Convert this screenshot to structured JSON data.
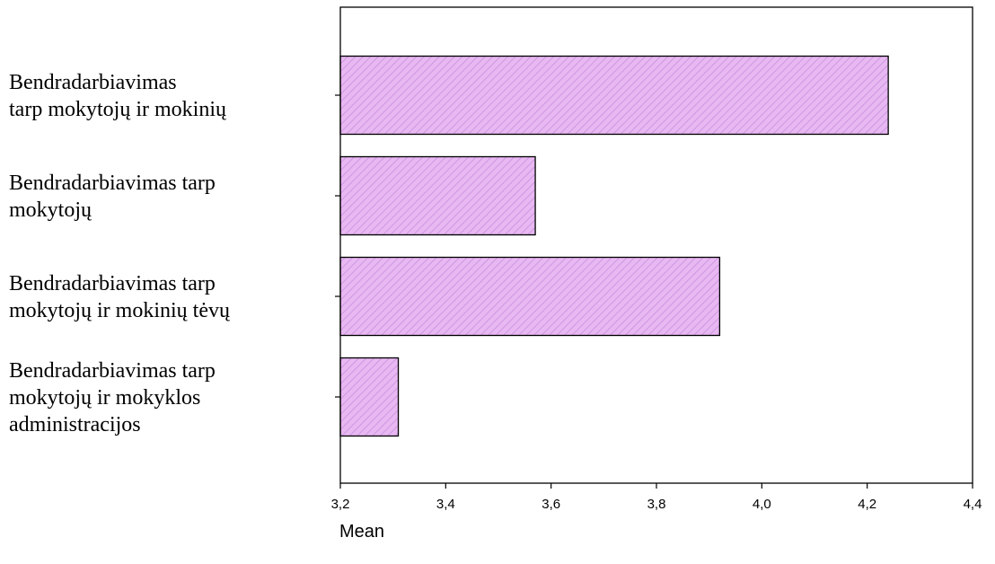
{
  "chart_data": {
    "type": "bar",
    "orientation": "horizontal",
    "categories": [
      [
        "Bendradarbiavimas",
        "tarp mokytojų ir mokinių"
      ],
      [
        "Bendradarbiavimas tarp",
        "mokytojų"
      ],
      [
        "Bendradarbiavimas tarp",
        "mokytojų ir mokinių tėvų"
      ],
      [
        "Bendradarbiavimas tarp",
        "mokytojų ir mokyklos",
        "administracijos"
      ]
    ],
    "values": [
      4.24,
      3.57,
      3.92,
      3.31
    ],
    "xlabel": "Mean",
    "xlim": [
      3.2,
      4.4
    ],
    "xticks": [
      "3,2",
      "3,4",
      "3,6",
      "3,8",
      "4,0",
      "4,2",
      "4,4"
    ],
    "xtick_values": [
      3.2,
      3.4,
      3.6,
      3.8,
      4.0,
      4.2,
      4.4
    ],
    "grid": false,
    "bar_fill": "#e8b8f2",
    "bar_hatch": "#c890dd"
  }
}
